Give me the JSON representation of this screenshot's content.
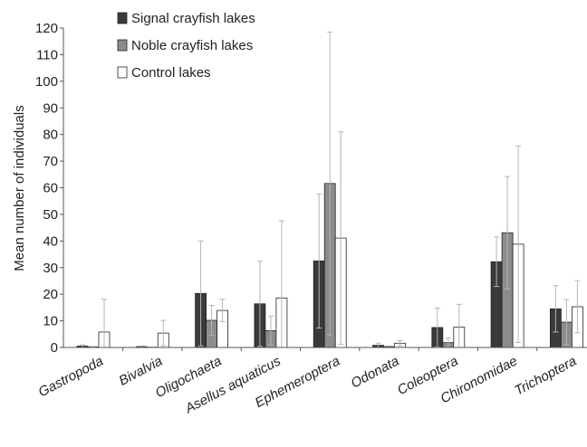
{
  "chart_data": {
    "type": "bar",
    "title": "",
    "xlabel": "",
    "ylabel": "Mean number of individuals",
    "ylim": [
      0,
      120
    ],
    "yticks": [
      0,
      10,
      20,
      30,
      40,
      50,
      60,
      70,
      80,
      90,
      100,
      110,
      120
    ],
    "grid": false,
    "legend_position": "top-center",
    "categories": [
      "Gastropoda",
      "Bivalvia",
      "Oligochaeta",
      "Asellus aquaticus",
      "Ephemeroptera",
      "Odonata",
      "Coleoptera",
      "Chironomidae",
      "Trichoptera"
    ],
    "series": [
      {
        "name": "Signal crayfish lakes",
        "color": "#3a3a3a",
        "values": [
          0.5,
          0.3,
          20.3,
          16.4,
          32.5,
          0.8,
          7.5,
          32.2,
          14.5
        ],
        "error": [
          0.5,
          0.3,
          19.7,
          16.0,
          25.2,
          0.8,
          7.3,
          9.3,
          8.7
        ]
      },
      {
        "name": "Noble crayfish lakes",
        "color": "#8c8c8c",
        "values": [
          0.2,
          0.1,
          10.2,
          6.3,
          61.6,
          0.3,
          1.8,
          43.1,
          9.5
        ],
        "error": [
          0.2,
          0.1,
          5.6,
          5.5,
          56.9,
          0.3,
          1.8,
          21.1,
          8.5
        ]
      },
      {
        "name": "Control lakes",
        "color": "#ffffff",
        "values": [
          5.8,
          5.4,
          13.9,
          18.6,
          41.1,
          1.6,
          7.6,
          38.8,
          15.3
        ],
        "error": [
          12.3,
          4.8,
          4.2,
          29.0,
          39.9,
          1.0,
          8.6,
          36.9,
          9.8
        ]
      }
    ]
  }
}
